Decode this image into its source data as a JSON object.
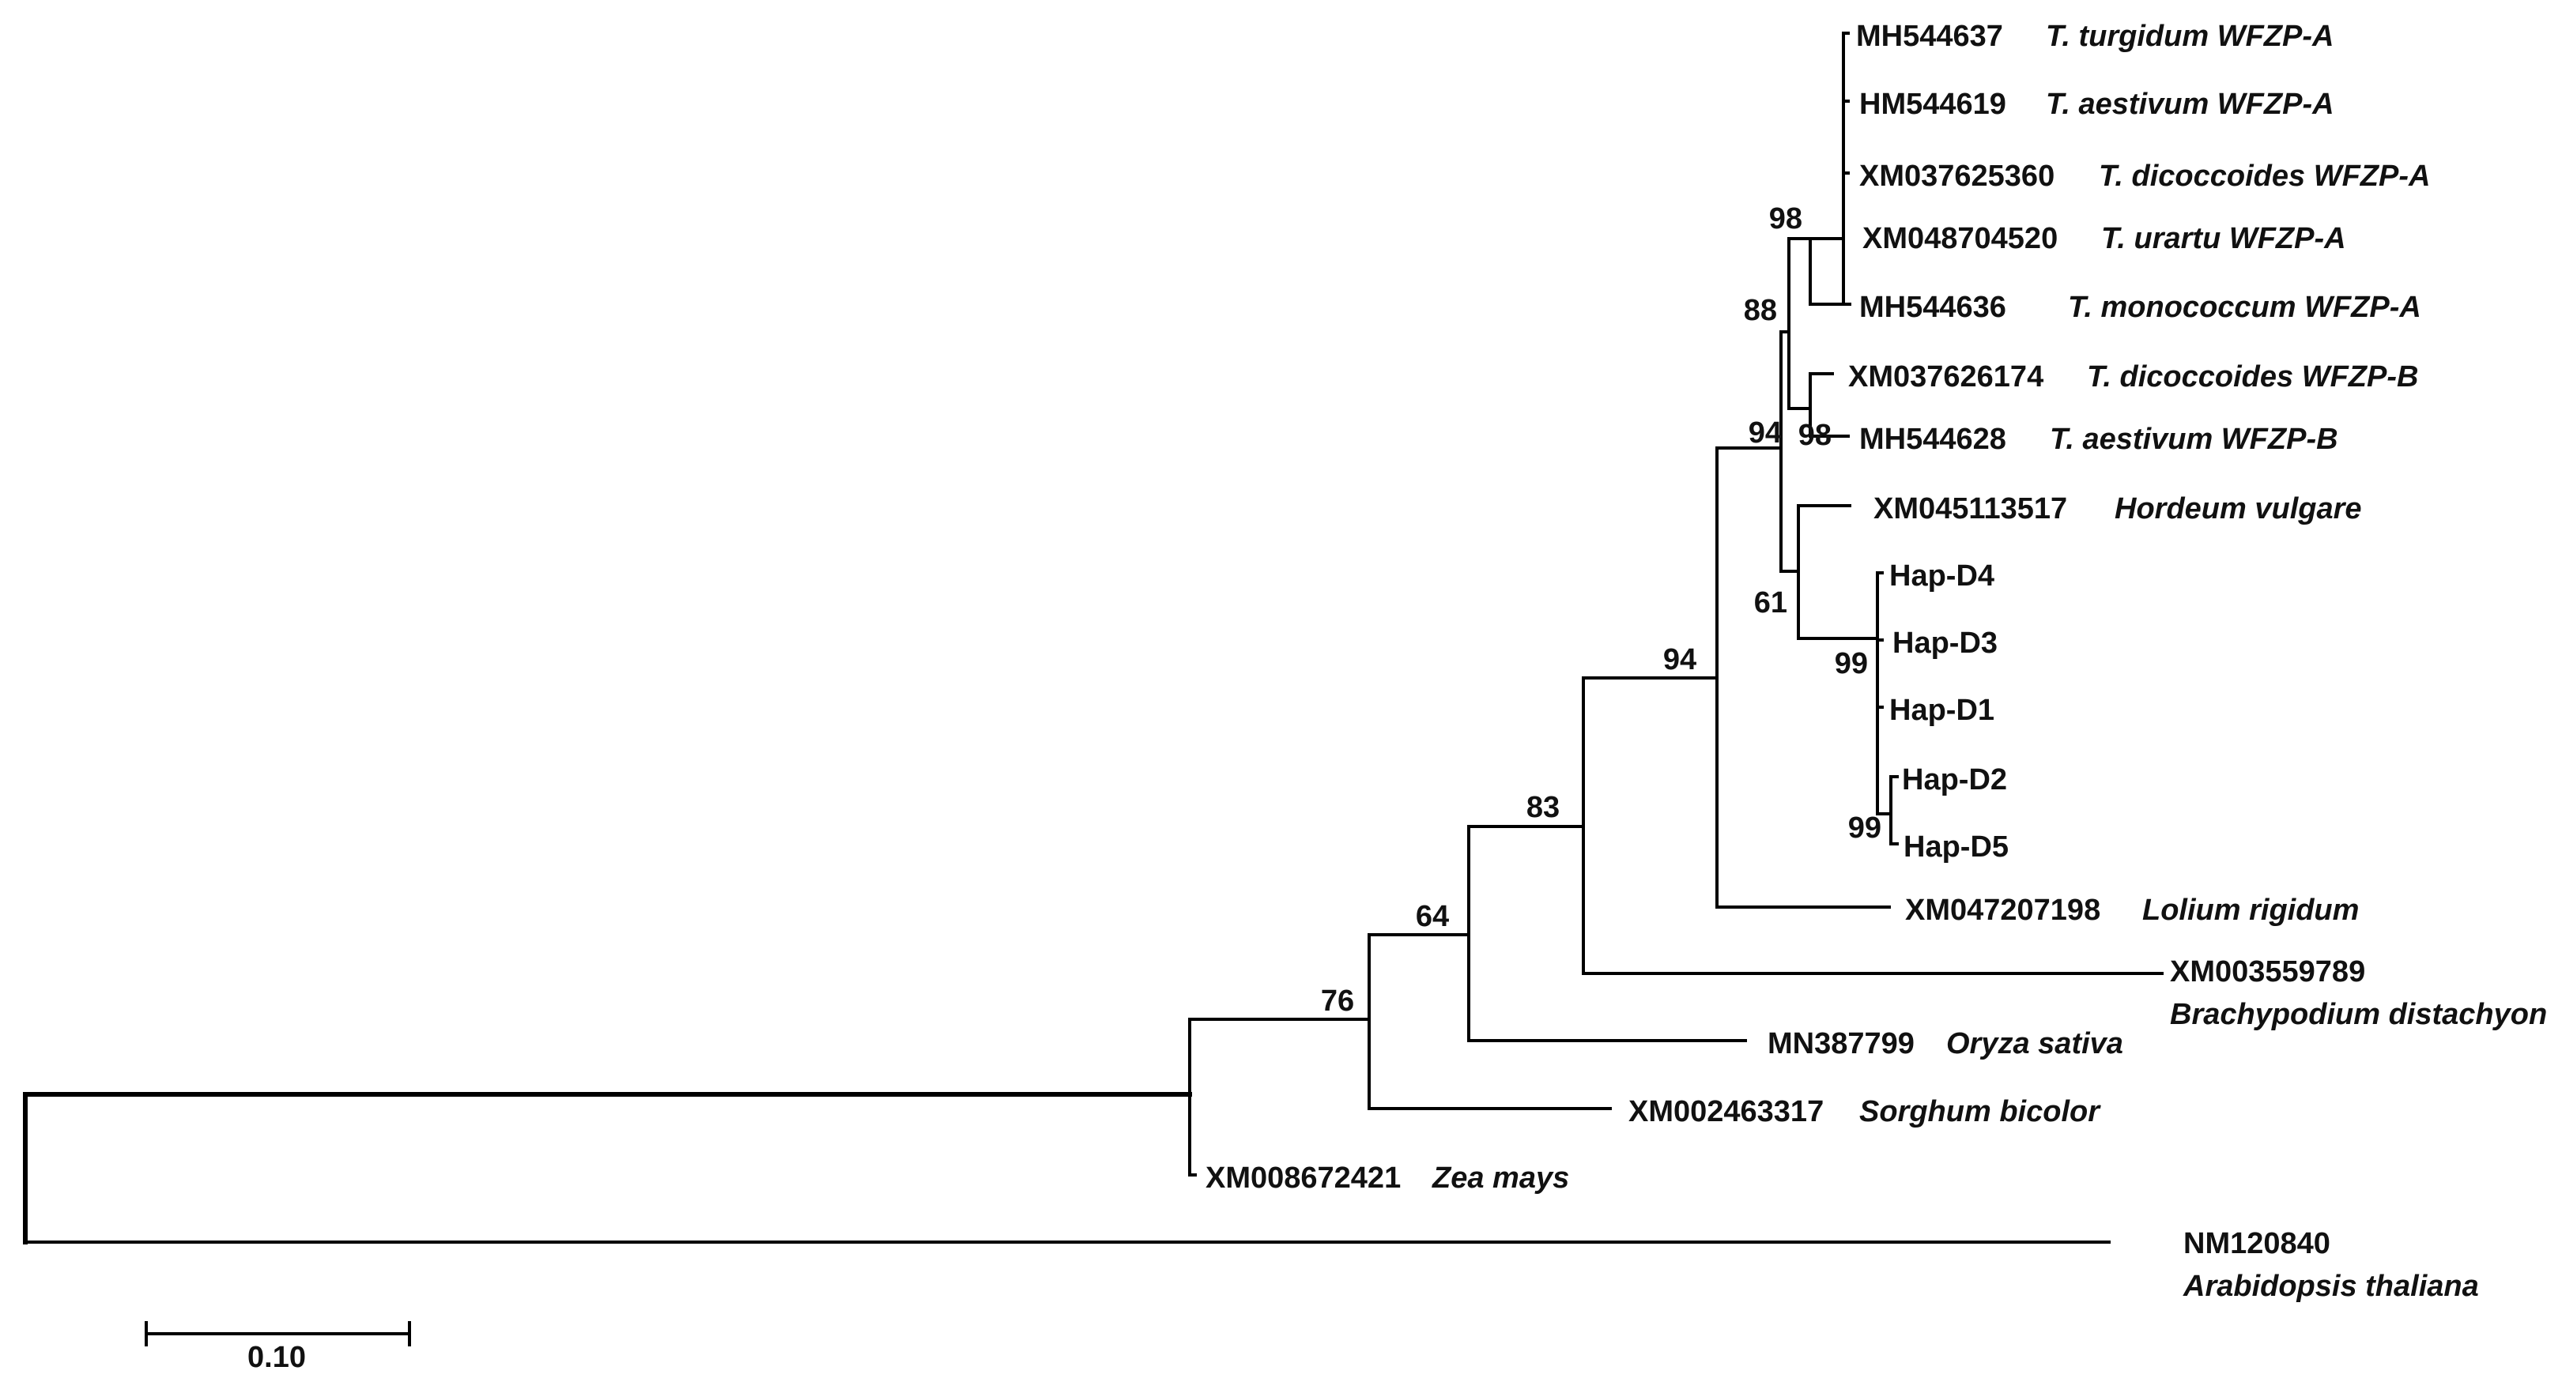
{
  "taxa": {
    "t1": {
      "acc": "MH544637",
      "species": "T. turgidum WFZP-A"
    },
    "t2": {
      "acc": "HM544619",
      "species": "T. aestivum WFZP-A"
    },
    "t3": {
      "acc": "XM037625360",
      "species": "T. dicoccoides WFZP-A"
    },
    "t4": {
      "acc": "XM048704520",
      "species": "T. urartu WFZP-A"
    },
    "t5": {
      "acc": "MH544636",
      "species": "T. monococcum WFZP-A"
    },
    "t6": {
      "acc": "XM037626174",
      "species": "T. dicoccoides WFZP-B"
    },
    "t7": {
      "acc": "MH544628",
      "species": "T. aestivum WFZP-B"
    },
    "t8": {
      "acc": "XM045113517",
      "species": "Hordeum vulgare"
    },
    "t9": {
      "acc": "Hap-D4"
    },
    "t10": {
      "acc": "Hap-D3"
    },
    "t11": {
      "acc": "Hap-D1"
    },
    "t12": {
      "acc": "Hap-D2"
    },
    "t13": {
      "acc": "Hap-D5"
    },
    "t14": {
      "acc": "XM047207198",
      "species": "Lolium rigidum"
    },
    "t15": {
      "acc": "XM003559789",
      "species": "Brachypodium distachyon"
    },
    "t16": {
      "acc": "MN387799",
      "species": "Oryza sativa"
    },
    "t17": {
      "acc": "XM002463317",
      "species": "Sorghum bicolor"
    },
    "t18": {
      "acc": "XM008672421",
      "species": "Zea mays"
    },
    "t19": {
      "acc": "NM120840",
      "species": "Arabidopsis thaliana"
    }
  },
  "bootstrap": {
    "wheatA": "98",
    "wheatAB": "88",
    "wheatB": "98",
    "triticeae": "94",
    "hordeumHap": "61",
    "hapClade": "99",
    "hapD2D5": "99",
    "pooideae": "94",
    "withBrachy": "83",
    "withOryza": "64",
    "withSorghum": "76"
  },
  "scale_bar": {
    "label": "0.10",
    "length": 0.1
  }
}
